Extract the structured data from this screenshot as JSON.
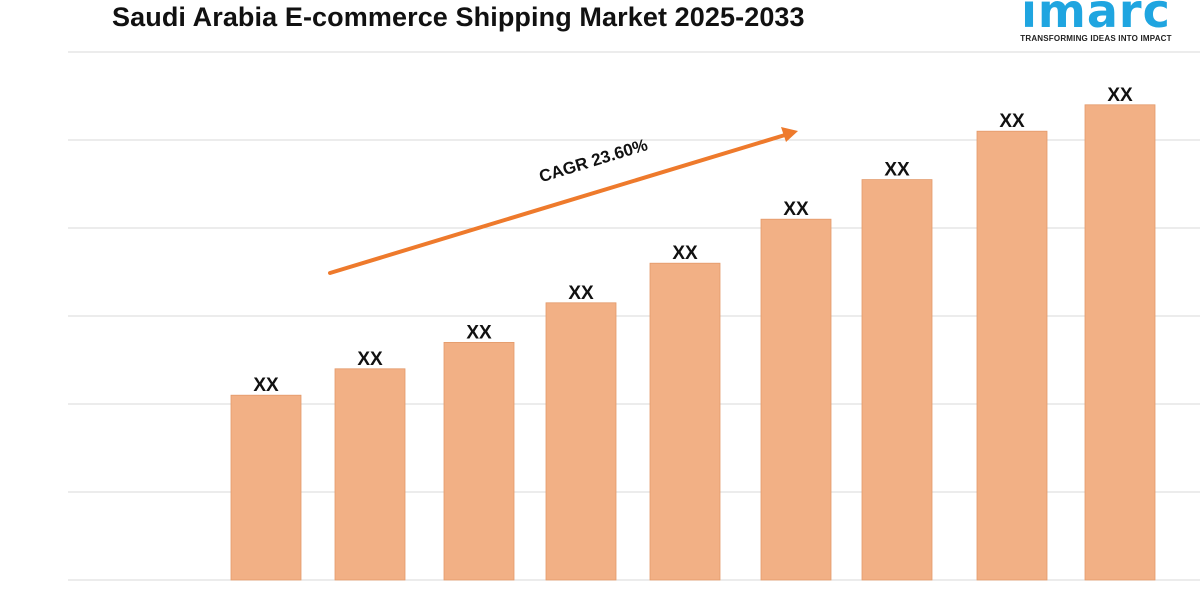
{
  "header": {
    "title": "Saudi Arabia E-commerce Shipping Market 2025-2033"
  },
  "logo": {
    "wordmark": "imarc",
    "tagline": "TRANSFORMING IDEAS INTO IMPACT",
    "color": "#1fa5e0"
  },
  "chart_data": {
    "type": "bar",
    "title": "Saudi Arabia E-commerce Shipping Market 2025-2033",
    "categories": [
      "",
      "",
      "",
      "",
      "",
      "",
      "",
      "",
      ""
    ],
    "values": [
      21,
      24,
      27,
      31.5,
      36,
      41,
      45.5,
      51,
      54
    ],
    "value_labels": [
      "XX",
      "XX",
      "XX",
      "XX",
      "XX",
      "XX",
      "XX",
      "XX",
      "XX"
    ],
    "ylim": [
      0,
      60
    ],
    "grid": true,
    "bar_color": "#f2b085",
    "arrow_color": "#ee7a2c",
    "annotation": "CAGR 23.60%"
  }
}
